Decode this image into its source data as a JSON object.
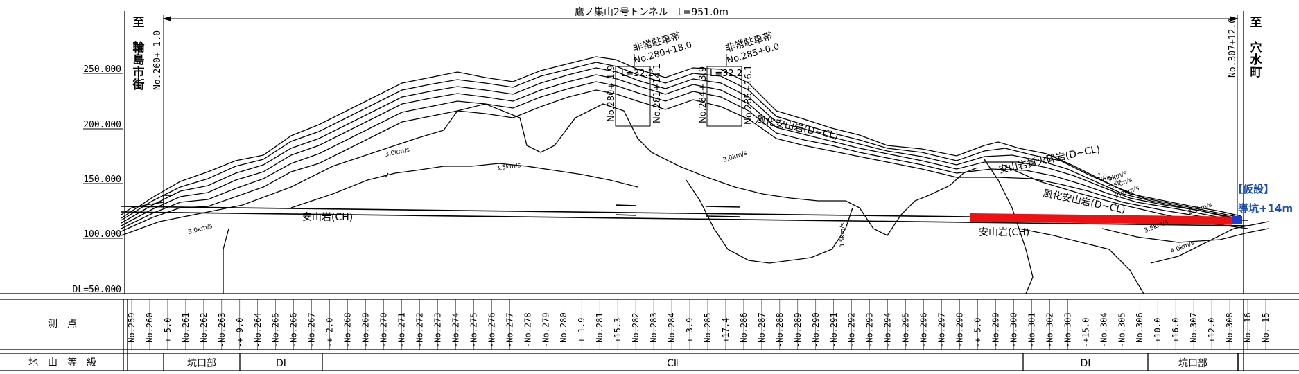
{
  "title": "鷹ノ巣山2号トンネル　L=951.0m",
  "left_end": {
    "mark": "至",
    "name": [
      "輪",
      "島",
      "市",
      "街"
    ],
    "station": "No.260+ 1.0"
  },
  "right_end": {
    "mark": "至",
    "name": [
      "穴",
      "水",
      "町"
    ],
    "station": "No.307+12.0"
  },
  "elevations": [
    "250.000",
    "200.000",
    "150.000",
    "100.000",
    "DL=50.000"
  ],
  "emergency_bays": [
    {
      "label": "非常駐車帯",
      "station": "No.280+18.0",
      "length": "L=32.2",
      "start": "No.280+ 1.9",
      "end": "No.281+14.1"
    },
    {
      "label": "非常駐車帯",
      "station": "No.285+0.0",
      "length": "L=32.2",
      "start": "No.284+ 3.9",
      "end": "No.285+16.1"
    }
  ],
  "rock_labels": {
    "andesite_left": "安山岩(CH)",
    "andesite_right": "安山岩(CH)",
    "weathered_andesite": "風化安山岩(D~CL)",
    "andesitic_tuff": "安山岩質火砕岩(D~CL)",
    "weathered_tuff": "風化安山岩(D~CL)"
  },
  "velocity_labels": [
    "3.0km/s",
    "3.5km/s",
    "3.0km/s",
    "3.5km/s",
    "3.0km/s",
    "3.5km/s",
    "4.0km/s",
    "2.5km/s",
    "1.0km/s",
    "0.5km/s",
    "1.5km/s",
    "2.0km/s"
  ],
  "annotation": {
    "line1": "【仮設】",
    "line2": "導坑+14m",
    "color": "#1d4fa8"
  },
  "colors": {
    "excavated": "#ee1111",
    "pilot": "#1a3fd0"
  },
  "table": {
    "row1_header": "測　点",
    "row2_header": "地　山　等　級",
    "stations": [
      "No.259",
      "No.260",
      "+ 5.0",
      "No.261",
      "No.262",
      "No.263",
      "+ 9.0",
      "No.264",
      "No.265",
      "No.266",
      "No.267",
      "+ 2.0",
      "No.268",
      "No.269",
      "No.270",
      "No.271",
      "No.272",
      "No.273",
      "No.274",
      "No.275",
      "No.276",
      "No.277",
      "No.278",
      "No.279",
      "No.280",
      "+ 1.9",
      "No.281",
      "+15.3",
      "No.282",
      "No.283",
      "No.284",
      "+ 3.9",
      "No.285",
      "+17.4",
      "No.286",
      "No.287",
      "No.288",
      "No.289",
      "No.290",
      "No.291",
      "No.292",
      "No.293",
      "No.294",
      "No.295",
      "No.296",
      "No.297",
      "No.298",
      "+ 5.0",
      "No.299",
      "No.300",
      "No.301",
      "No.302",
      "No.303",
      "+15.0",
      "No.304",
      "No.305",
      "No.306",
      "+10.0",
      "+16.0",
      "No.307",
      "+12.0",
      "No.308",
      "No.-16",
      "No.-15"
    ],
    "classes": [
      "坑口部",
      "DⅠ",
      "CⅡ",
      "DⅠ",
      "坑口部"
    ]
  }
}
